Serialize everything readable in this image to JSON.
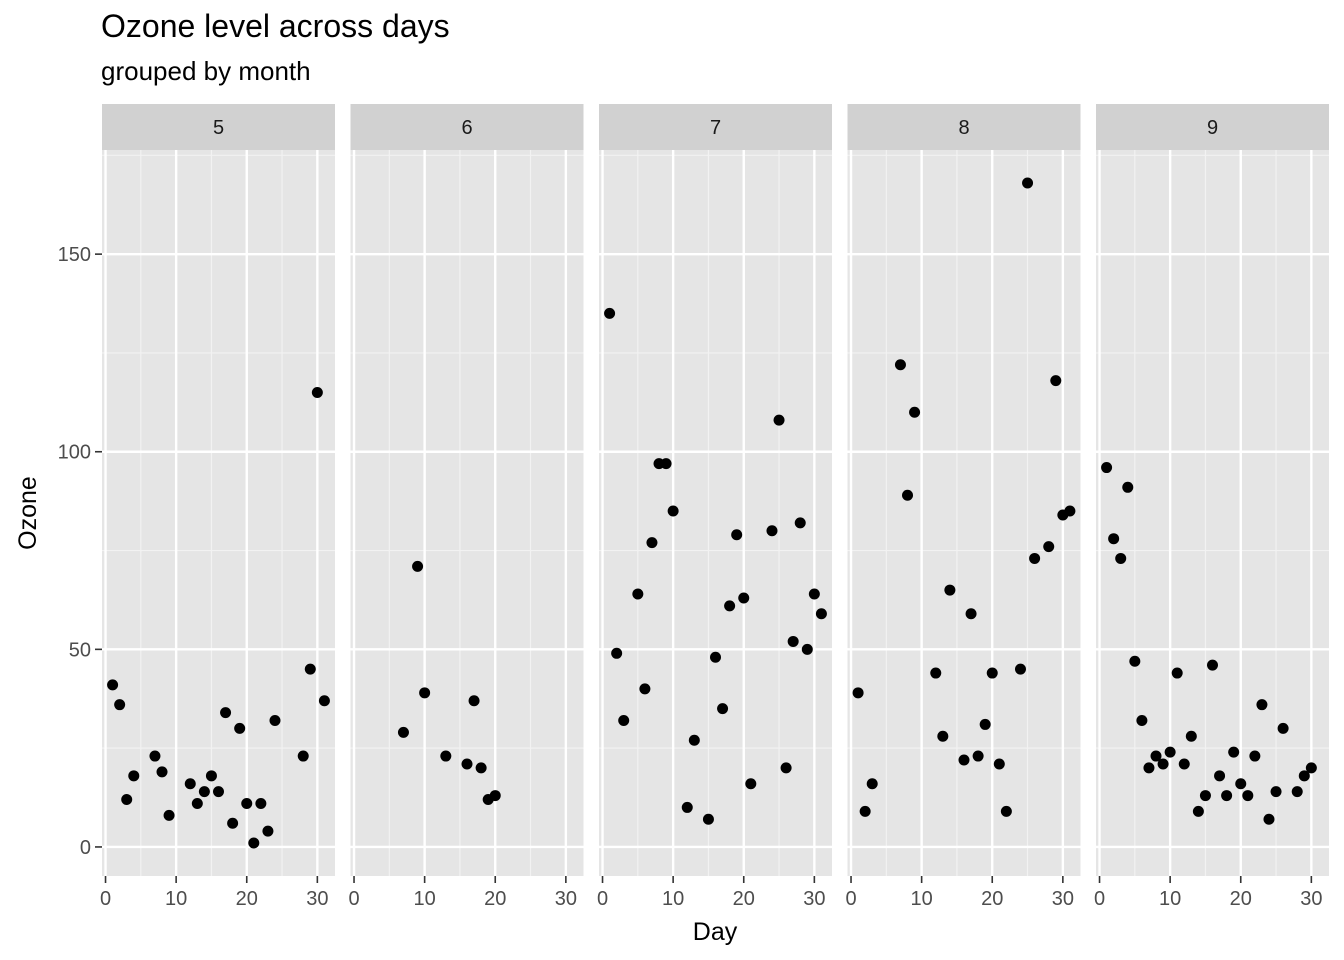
{
  "chart_data": {
    "type": "scatter",
    "title": "Ozone level across days",
    "subtitle": "grouped by month",
    "xlabel": "Day",
    "ylabel": "Ozone",
    "xlim": [
      -0.5,
      32.5
    ],
    "ylim": [
      -7.35,
      176.35
    ],
    "x_ticks": [
      0,
      10,
      20,
      30
    ],
    "y_ticks": [
      0,
      50,
      100,
      150
    ],
    "grid": true,
    "point_color": "#000000",
    "panel_background": "#e5e5e5",
    "strip_background": "#d1d1d1",
    "facets": [
      {
        "label": "5",
        "points": [
          [
            1,
            41
          ],
          [
            2,
            36
          ],
          [
            3,
            12
          ],
          [
            4,
            18
          ],
          [
            7,
            23
          ],
          [
            8,
            19
          ],
          [
            9,
            8
          ],
          [
            12,
            16
          ],
          [
            13,
            11
          ],
          [
            14,
            14
          ],
          [
            15,
            18
          ],
          [
            16,
            14
          ],
          [
            17,
            34
          ],
          [
            18,
            6
          ],
          [
            19,
            30
          ],
          [
            20,
            11
          ],
          [
            21,
            1
          ],
          [
            22,
            11
          ],
          [
            23,
            4
          ],
          [
            24,
            32
          ],
          [
            28,
            23
          ],
          [
            29,
            45
          ],
          [
            30,
            115
          ],
          [
            31,
            37
          ]
        ]
      },
      {
        "label": "6",
        "points": [
          [
            7,
            29
          ],
          [
            9,
            71
          ],
          [
            10,
            39
          ],
          [
            13,
            23
          ],
          [
            16,
            21
          ],
          [
            17,
            37
          ],
          [
            18,
            20
          ],
          [
            19,
            12
          ],
          [
            20,
            13
          ]
        ]
      },
      {
        "label": "7",
        "points": [
          [
            1,
            135
          ],
          [
            2,
            49
          ],
          [
            3,
            32
          ],
          [
            5,
            64
          ],
          [
            6,
            40
          ],
          [
            7,
            77
          ],
          [
            8,
            97
          ],
          [
            9,
            97
          ],
          [
            10,
            85
          ],
          [
            12,
            10
          ],
          [
            13,
            27
          ],
          [
            15,
            7
          ],
          [
            16,
            48
          ],
          [
            17,
            35
          ],
          [
            18,
            61
          ],
          [
            19,
            79
          ],
          [
            20,
            63
          ],
          [
            21,
            16
          ],
          [
            24,
            80
          ],
          [
            25,
            108
          ],
          [
            26,
            20
          ],
          [
            27,
            52
          ],
          [
            28,
            82
          ],
          [
            29,
            50
          ],
          [
            30,
            64
          ],
          [
            31,
            59
          ]
        ]
      },
      {
        "label": "8",
        "points": [
          [
            1,
            39
          ],
          [
            2,
            9
          ],
          [
            3,
            16
          ],
          [
            7,
            122
          ],
          [
            8,
            89
          ],
          [
            9,
            110
          ],
          [
            12,
            44
          ],
          [
            13,
            28
          ],
          [
            14,
            65
          ],
          [
            16,
            22
          ],
          [
            17,
            59
          ],
          [
            18,
            23
          ],
          [
            19,
            31
          ],
          [
            20,
            44
          ],
          [
            21,
            21
          ],
          [
            22,
            9
          ],
          [
            24,
            45
          ],
          [
            25,
            168
          ],
          [
            26,
            73
          ],
          [
            28,
            76
          ],
          [
            29,
            118
          ],
          [
            30,
            84
          ],
          [
            31,
            85
          ]
        ]
      },
      {
        "label": "9",
        "points": [
          [
            1,
            96
          ],
          [
            2,
            78
          ],
          [
            3,
            73
          ],
          [
            4,
            91
          ],
          [
            5,
            47
          ],
          [
            6,
            32
          ],
          [
            7,
            20
          ],
          [
            8,
            23
          ],
          [
            9,
            21
          ],
          [
            10,
            24
          ],
          [
            11,
            44
          ],
          [
            12,
            21
          ],
          [
            13,
            28
          ],
          [
            14,
            9
          ],
          [
            15,
            13
          ],
          [
            16,
            46
          ],
          [
            17,
            18
          ],
          [
            18,
            13
          ],
          [
            19,
            24
          ],
          [
            20,
            16
          ],
          [
            21,
            13
          ],
          [
            22,
            23
          ],
          [
            23,
            36
          ],
          [
            24,
            7
          ],
          [
            25,
            14
          ],
          [
            26,
            30
          ],
          [
            28,
            14
          ],
          [
            29,
            18
          ],
          [
            30,
            20
          ]
        ]
      }
    ]
  }
}
